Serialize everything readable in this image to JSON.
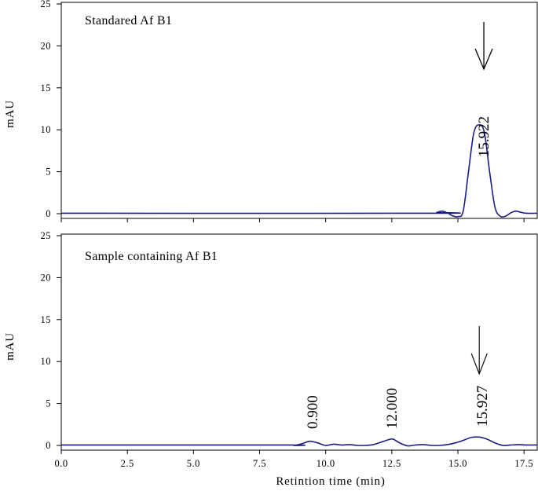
{
  "chart_data": [
    {
      "type": "line",
      "title": "Standared Af B1",
      "xlabel": "",
      "ylabel": "mAU",
      "xlim": [
        0,
        18
      ],
      "ylim": [
        0,
        25
      ],
      "yticks": [
        0,
        5,
        10,
        15,
        20,
        25
      ],
      "grid": false,
      "series": [
        {
          "color": "#1c1c8a",
          "x": [
            0,
            14.0,
            14.2,
            14.4,
            14.6,
            14.8,
            15.0,
            15.2,
            15.4,
            15.6,
            15.8,
            16.0,
            16.2,
            16.4,
            16.6,
            16.8,
            17.0,
            17.2,
            17.4,
            17.6,
            18.0
          ],
          "y": [
            0.05,
            0.05,
            0.15,
            0.3,
            0.1,
            -0.25,
            -0.35,
            0.3,
            5.0,
            9.6,
            10.6,
            9.7,
            5.0,
            0.8,
            -0.3,
            -0.3,
            0.1,
            0.3,
            0.15,
            0.05,
            0.05
          ]
        }
      ],
      "annotations": [
        {
          "text": "15.922",
          "x": 15.922,
          "arrow": true
        }
      ]
    },
    {
      "type": "line",
      "title": "Sample containing Af B1",
      "xlabel": "Retintion time (min)",
      "ylabel": "mAU",
      "xlim": [
        0,
        18
      ],
      "ylim": [
        0,
        25
      ],
      "yticks": [
        0,
        5,
        10,
        15,
        20,
        25
      ],
      "xticks": [
        "0.0",
        "2.5",
        "5.0",
        "7.5",
        "10.0",
        "12.5",
        "15.0",
        "17.5"
      ],
      "grid": false,
      "series": [
        {
          "color": "#1c1c8a",
          "x": [
            0,
            8.5,
            8.8,
            9.1,
            9.4,
            9.7,
            10.0,
            10.3,
            10.6,
            10.9,
            11.2,
            11.5,
            11.8,
            12.1,
            12.4,
            12.55,
            12.8,
            13.1,
            13.4,
            13.7,
            14.0,
            14.3,
            14.6,
            14.9,
            15.2,
            15.5,
            15.8,
            16.1,
            16.4,
            16.7,
            17.0,
            17.3,
            17.6,
            18.0
          ],
          "y": [
            0.05,
            0.05,
            0.0,
            0.2,
            0.5,
            0.3,
            0.0,
            0.15,
            0.05,
            0.1,
            0.0,
            0.0,
            0.1,
            0.4,
            0.7,
            0.75,
            0.3,
            -0.05,
            0.05,
            0.1,
            0.0,
            0.0,
            0.1,
            0.3,
            0.6,
            0.95,
            1.0,
            0.75,
            0.3,
            0.0,
            0.05,
            0.1,
            0.05,
            0.05
          ]
        }
      ],
      "annotations": [
        {
          "text": "0.900",
          "x": 9.5,
          "arrow": false
        },
        {
          "text": "12.000",
          "x": 12.5,
          "arrow": false
        },
        {
          "text": "15.927",
          "x": 15.927,
          "arrow": true
        }
      ]
    }
  ]
}
